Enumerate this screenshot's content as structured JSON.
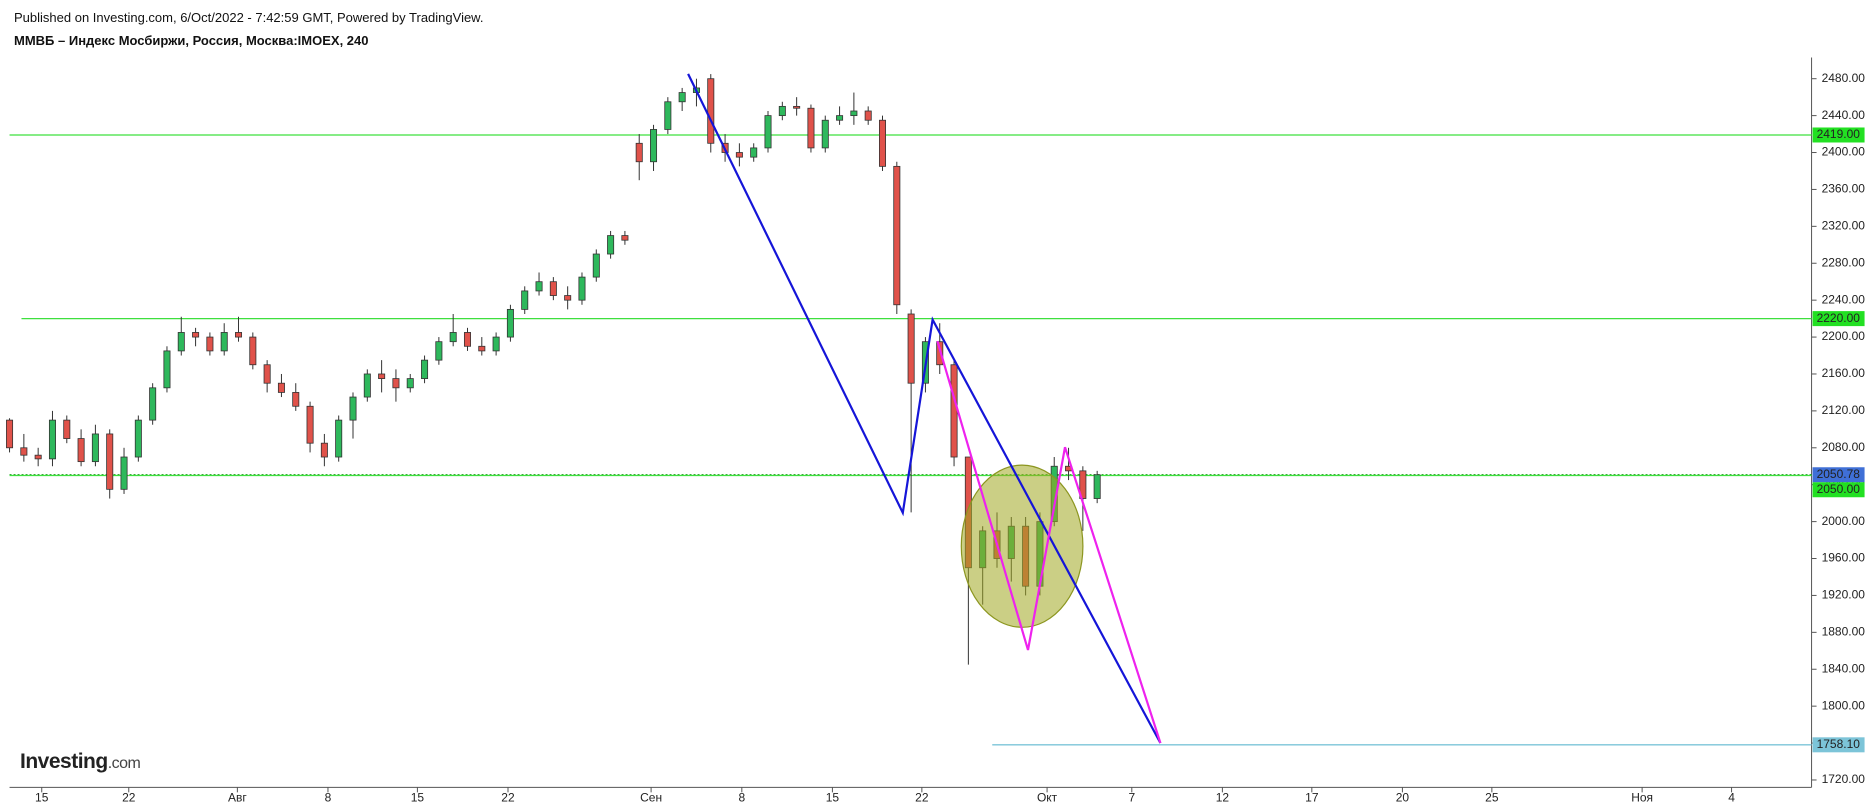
{
  "header": {
    "published": "Published on Investing.com, 6/Oct/2022 - 7:42:59 GMT, Powered by TradingView.",
    "symbol": "ММВБ – Индекс Мосбиржи, Россия, Москва:IMOEX, 240"
  },
  "logo": {
    "brand": "Investing",
    "suffix": ".com"
  },
  "chart_data": {
    "type": "candlestick",
    "up_color": "#2eb85c",
    "down_color": "#e0524a",
    "x": [
      0,
      1,
      2,
      3,
      4,
      5,
      6,
      7,
      8,
      9,
      10,
      11,
      12,
      13,
      14,
      15,
      16,
      17,
      18,
      19,
      20,
      21,
      22,
      23,
      24,
      25,
      26,
      27,
      28,
      29,
      30,
      31,
      32,
      33,
      34,
      35,
      36,
      37,
      38,
      39,
      40,
      41,
      42,
      43,
      44,
      45,
      46,
      47,
      48,
      49,
      50,
      51,
      52,
      53,
      54,
      55,
      56,
      57,
      58,
      59,
      60,
      61,
      62,
      63,
      64,
      65,
      66,
      67,
      68,
      69,
      70,
      71,
      72,
      73,
      74,
      75,
      76
    ],
    "open": [
      2110,
      2080,
      2072,
      2068,
      2110,
      2090,
      2065,
      2095,
      2035,
      2070,
      2110,
      2145,
      2185,
      2205,
      2200,
      2185,
      2205,
      2200,
      2170,
      2150,
      2140,
      2125,
      2085,
      2070,
      2110,
      2135,
      2160,
      2155,
      2145,
      2155,
      2175,
      2195,
      2205,
      2190,
      2185,
      2200,
      2230,
      2250,
      2260,
      2245,
      2240,
      2265,
      2290,
      2310,
      2410,
      2390,
      2425,
      2455,
      2465,
      2480,
      2410,
      2400,
      2395,
      2405,
      2440,
      2450,
      2448,
      2405,
      2435,
      2440,
      2445,
      2435,
      2385,
      2225,
      2150,
      2195,
      2170,
      2070,
      1950,
      1990,
      1960,
      1995,
      1930,
      2000,
      2060,
      2055,
      2025
    ],
    "high": [
      2112,
      2095,
      2080,
      2120,
      2115,
      2100,
      2105,
      2100,
      2080,
      2115,
      2150,
      2190,
      2222,
      2210,
      2205,
      2215,
      2222,
      2205,
      2175,
      2160,
      2150,
      2130,
      2095,
      2115,
      2140,
      2165,
      2175,
      2165,
      2160,
      2180,
      2200,
      2225,
      2210,
      2200,
      2205,
      2235,
      2255,
      2270,
      2265,
      2255,
      2270,
      2295,
      2315,
      2315,
      2420,
      2430,
      2460,
      2470,
      2480,
      2485,
      2420,
      2410,
      2410,
      2445,
      2455,
      2460,
      2452,
      2440,
      2450,
      2465,
      2450,
      2440,
      2390,
      2230,
      2200,
      2215,
      2175,
      2070,
      1995,
      2010,
      2005,
      2005,
      2010,
      2070,
      2080,
      2060,
      2055
    ],
    "low": [
      2075,
      2065,
      2060,
      2060,
      2085,
      2060,
      2060,
      2025,
      2030,
      2065,
      2105,
      2140,
      2180,
      2190,
      2180,
      2180,
      2195,
      2165,
      2140,
      2135,
      2120,
      2075,
      2060,
      2065,
      2090,
      2130,
      2140,
      2130,
      2140,
      2150,
      2170,
      2190,
      2185,
      2180,
      2180,
      2195,
      2225,
      2245,
      2240,
      2230,
      2235,
      2260,
      2285,
      2300,
      2370,
      2380,
      2420,
      2445,
      2450,
      2400,
      2390,
      2385,
      2390,
      2400,
      2435,
      2440,
      2400,
      2400,
      2430,
      2430,
      2430,
      2380,
      2225,
      2010,
      2140,
      2160,
      2060,
      1845,
      1910,
      1950,
      1935,
      1920,
      1920,
      1995,
      2045,
      1990,
      2020
    ],
    "close": [
      2080,
      2072,
      2068,
      2110,
      2090,
      2065,
      2095,
      2035,
      2070,
      2110,
      2145,
      2185,
      2205,
      2200,
      2185,
      2205,
      2200,
      2170,
      2150,
      2140,
      2125,
      2085,
      2070,
      2110,
      2135,
      2160,
      2155,
      2145,
      2155,
      2175,
      2195,
      2205,
      2190,
      2185,
      2200,
      2230,
      2250,
      2260,
      2245,
      2240,
      2265,
      2290,
      2310,
      2305,
      2390,
      2425,
      2455,
      2465,
      2470,
      2410,
      2400,
      2395,
      2405,
      2440,
      2450,
      2448,
      2405,
      2435,
      2440,
      2445,
      2435,
      2385,
      2235,
      2150,
      2195,
      2170,
      2070,
      1950,
      1990,
      1960,
      1995,
      1930,
      2000,
      2060,
      2055,
      2025,
      2050.78
    ],
    "xlim": [
      0,
      125.92
    ],
    "xticks": [
      {
        "value": 2.25,
        "label": "15"
      },
      {
        "value": 8.33,
        "label": "22"
      },
      {
        "value": 15.92,
        "label": "Авг"
      },
      {
        "value": 22.25,
        "label": "8"
      },
      {
        "value": 28.5,
        "label": "15"
      },
      {
        "value": 34.83,
        "label": "22"
      },
      {
        "value": 44.83,
        "label": "Сен"
      },
      {
        "value": 51.17,
        "label": "8"
      },
      {
        "value": 57.5,
        "label": "15"
      },
      {
        "value": 63.75,
        "label": "22"
      },
      {
        "value": 72.5,
        "label": "Окт"
      },
      {
        "value": 78.42,
        "label": "7"
      },
      {
        "value": 84.75,
        "label": "12"
      },
      {
        "value": 91,
        "label": "17"
      },
      {
        "value": 97.33,
        "label": "20"
      },
      {
        "value": 103.58,
        "label": "25"
      },
      {
        "value": 114.08,
        "label": "Ноя"
      },
      {
        "value": 120.33,
        "label": "4"
      }
    ],
    "ylim": [
      1712,
      2503
    ],
    "yticks": [
      {
        "value": 1720,
        "label": "1720.00"
      },
      {
        "value": 1760,
        "label": "1760.00"
      },
      {
        "value": 1800,
        "label": "1800.00"
      },
      {
        "value": 1840,
        "label": "1840.00"
      },
      {
        "value": 1880,
        "label": "1880.00"
      },
      {
        "value": 1920,
        "label": "1920.00"
      },
      {
        "value": 1960,
        "label": "1960.00"
      },
      {
        "value": 2000,
        "label": "2000.00"
      },
      {
        "value": 2040,
        "label": "2040.00"
      },
      {
        "value": 2080,
        "label": "2080.00"
      },
      {
        "value": 2120,
        "label": "2120.00"
      },
      {
        "value": 2160,
        "label": "2160.00"
      },
      {
        "value": 2200,
        "label": "2200.00"
      },
      {
        "value": 2240,
        "label": "2240.00"
      },
      {
        "value": 2280,
        "label": "2280.00"
      },
      {
        "value": 2320,
        "label": "2320.00"
      },
      {
        "value": 2360,
        "label": "2360.00"
      },
      {
        "value": 2400,
        "label": "2400.00"
      },
      {
        "value": 2440,
        "label": "2440.00"
      },
      {
        "value": 2480,
        "label": "2480.00"
      }
    ],
    "levels": [
      {
        "value": 2419,
        "label": "2419.00",
        "color": "#3ee03e",
        "label_bg": "#22e022"
      },
      {
        "value": 2220,
        "label": "2220.00",
        "color": "#3ee03e",
        "label_bg": "#22e022"
      },
      {
        "value": 2050.78,
        "label": "2050.78",
        "color": "#1a9a1a",
        "label_bg": "#3f6fd6",
        "style": "dotted"
      },
      {
        "value": 2050,
        "label": "2050.00",
        "color": "#3ee03e",
        "label_bg": "#22e022"
      },
      {
        "value": 1758.1,
        "label": "1758.10",
        "color": "#7cc4d8",
        "label_bg": "#7cc4d8"
      }
    ]
  }
}
